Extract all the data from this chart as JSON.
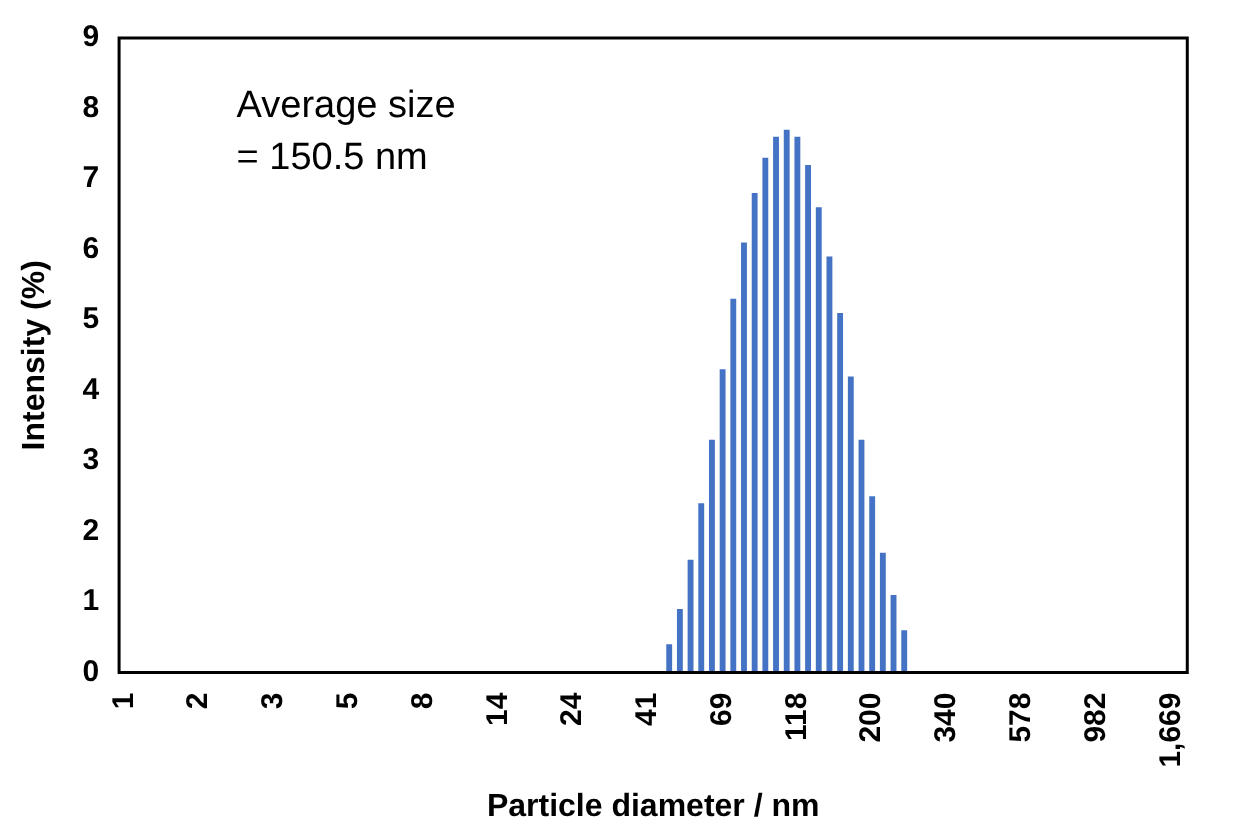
{
  "chart_data": {
    "type": "bar",
    "xlabel": "Particle diameter / nm",
    "ylabel": "Intensity (%)",
    "categories": [
      "1",
      null,
      null,
      null,
      null,
      null,
      null,
      "2",
      null,
      null,
      null,
      null,
      null,
      null,
      "3",
      null,
      null,
      null,
      null,
      null,
      null,
      "5",
      null,
      null,
      null,
      null,
      null,
      null,
      "8",
      null,
      null,
      null,
      null,
      null,
      null,
      "14",
      null,
      null,
      null,
      null,
      null,
      null,
      "24",
      null,
      null,
      null,
      null,
      null,
      null,
      "41",
      null,
      null,
      null,
      null,
      null,
      null,
      "69",
      null,
      null,
      null,
      null,
      null,
      null,
      "118",
      null,
      null,
      null,
      null,
      null,
      null,
      "200",
      null,
      null,
      null,
      null,
      null,
      null,
      "340",
      null,
      null,
      null,
      null,
      null,
      null,
      "578",
      null,
      null,
      null,
      null,
      null,
      null,
      "982",
      null,
      null,
      null,
      null,
      null,
      null,
      "1,669",
      null
    ],
    "values": [
      0,
      0,
      0,
      0,
      0,
      0,
      0,
      0,
      0,
      0,
      0,
      0,
      0,
      0,
      0,
      0,
      0,
      0,
      0,
      0,
      0,
      0,
      0,
      0,
      0,
      0,
      0,
      0,
      0,
      0,
      0,
      0,
      0,
      0,
      0,
      0,
      0,
      0,
      0,
      0,
      0,
      0,
      0,
      0,
      0,
      0,
      0,
      0,
      0,
      0,
      0,
      0.4,
      0.9,
      1.6,
      2.4,
      3.3,
      4.3,
      5.3,
      6.1,
      6.8,
      7.3,
      7.6,
      7.7,
      7.6,
      7.2,
      6.6,
      5.9,
      5.1,
      4.2,
      3.3,
      2.5,
      1.7,
      1.1,
      0.6,
      0,
      0,
      0,
      0,
      0,
      0,
      0,
      0,
      0,
      0,
      0,
      0,
      0,
      0,
      0,
      0,
      0,
      0,
      0,
      0,
      0,
      0,
      0,
      0,
      0,
      0
    ],
    "color": "#4472c4",
    "ylim": [
      0,
      9
    ],
    "yticks": [
      0,
      1,
      2,
      3,
      4,
      5,
      6,
      7,
      8,
      9
    ],
    "grid": false,
    "legend": false,
    "annotations": [
      "Average size\n= 150.5 nm"
    ]
  }
}
